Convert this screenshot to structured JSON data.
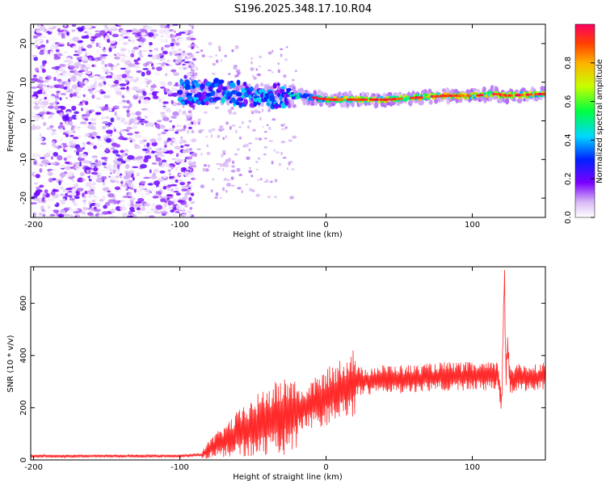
{
  "title": "S196.2025.348.17.10.R04",
  "chart_data": [
    {
      "type": "heatmap",
      "name": "spectrogram",
      "xlabel": "Height of straight line (km)",
      "ylabel": "Frequency (Hz)",
      "xlim": [
        -202,
        150
      ],
      "ylim": [
        -25,
        25
      ],
      "xticks": [
        -200,
        -100,
        0,
        100
      ],
      "yticks": [
        -20,
        -10,
        0,
        10,
        20
      ],
      "colorbar": {
        "label": "Normalized spectral amplitude",
        "range": [
          0,
          1
        ],
        "ticks": [
          "0.0",
          "0.2",
          "0.4",
          "0.6",
          "0.8"
        ],
        "tick_values": [
          0,
          0.2,
          0.4,
          0.6,
          0.8
        ]
      },
      "signal_ridge": {
        "x": [
          -100,
          -80,
          -60,
          -40,
          -20,
          0,
          20,
          40,
          60,
          80,
          100,
          115,
          120,
          150
        ],
        "y": [
          7.5,
          7.5,
          7,
          6.5,
          6.5,
          5.5,
          5.5,
          5.5,
          6,
          6.5,
          6.5,
          7,
          6.5,
          7
        ]
      },
      "noise_region_x": [
        -200,
        -100
      ]
    },
    {
      "type": "line",
      "name": "snr",
      "xlabel": "Height of straight line (km)",
      "ylabel": "SNR (10 * v/v)",
      "xlim": [
        -202,
        150
      ],
      "ylim": [
        0,
        740
      ],
      "xticks": [
        -200,
        -100,
        0,
        100
      ],
      "yticks": [
        0,
        200,
        400,
        600
      ],
      "series": [
        {
          "name": "SNR",
          "color": "#ff2a2a",
          "trend": {
            "x": [
              -202,
              -100,
              -85,
              -80,
              -60,
              -40,
              -20,
              0,
              20,
              40,
              60,
              80,
              100,
              118,
              120,
              122,
              123,
              124,
              126,
              150
            ],
            "y": [
              15,
              15,
              20,
              40,
              100,
              150,
              180,
              240,
              300,
              310,
              310,
              320,
              320,
              320,
              200,
              730,
              300,
              450,
              310,
              320
            ]
          }
        }
      ]
    }
  ]
}
